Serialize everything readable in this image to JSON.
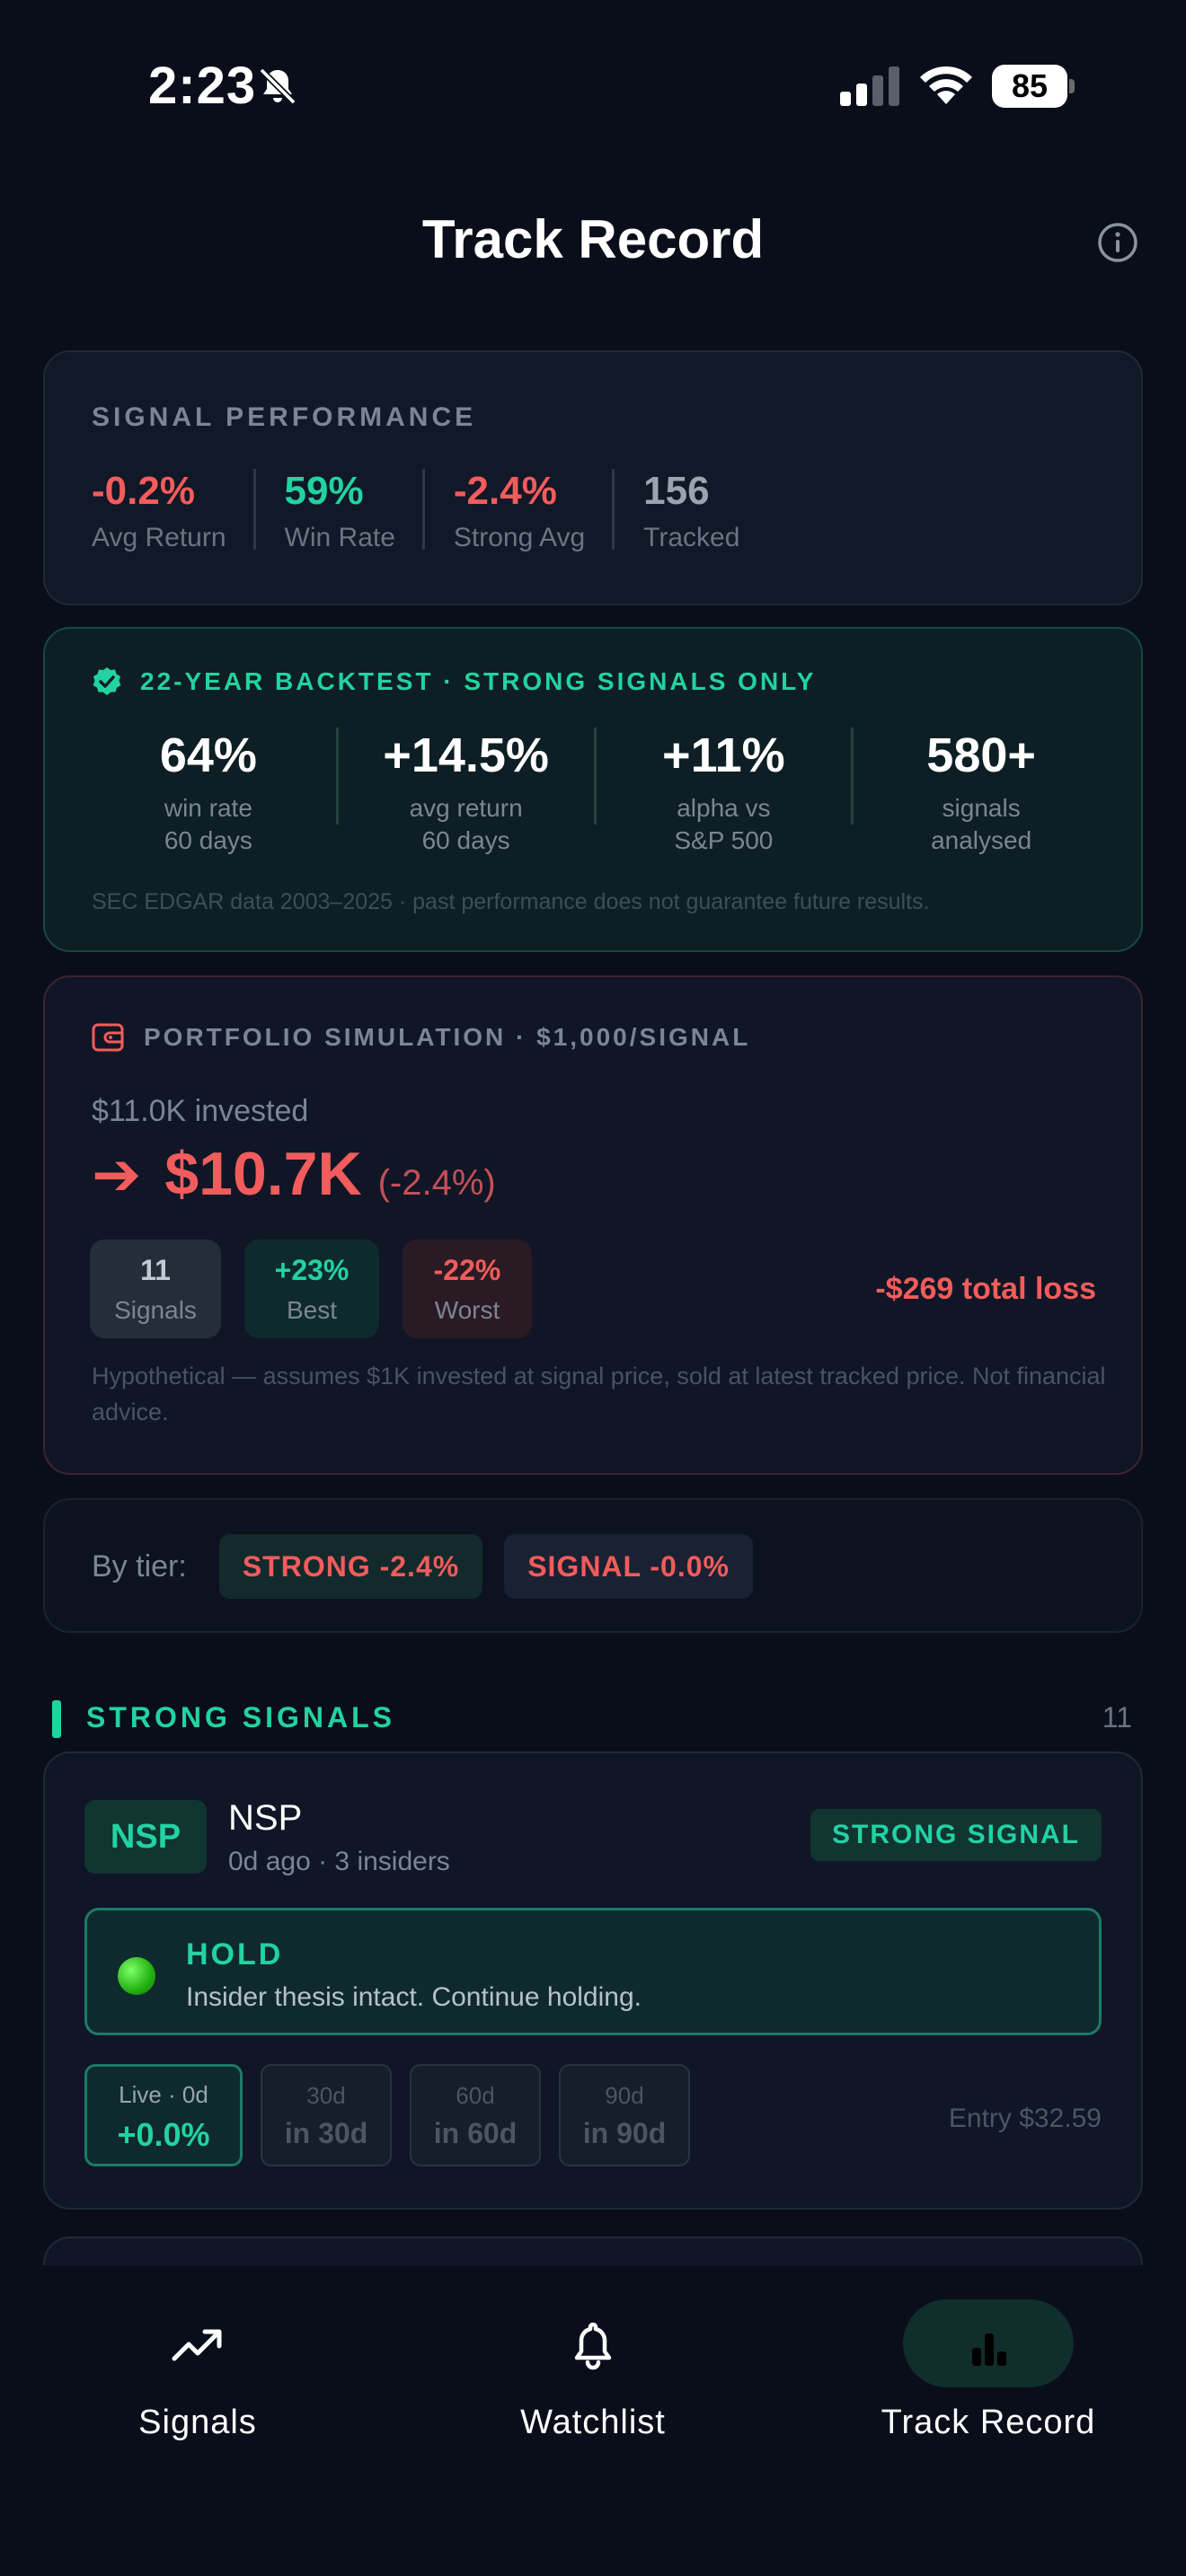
{
  "status_bar": {
    "time": "2:23",
    "battery": "85"
  },
  "header": {
    "title": "Track Record"
  },
  "signal_performance": {
    "label": "SIGNAL PERFORMANCE",
    "stats": [
      {
        "value": "-0.2%",
        "label": "Avg Return",
        "tone": "red"
      },
      {
        "value": "59%",
        "label": "Win Rate",
        "tone": "green"
      },
      {
        "value": "-2.4%",
        "label": "Strong Avg",
        "tone": "red"
      },
      {
        "value": "156",
        "label": "Tracked",
        "tone": "muted"
      }
    ]
  },
  "backtest": {
    "title": "22-YEAR BACKTEST · STRONG SIGNALS ONLY",
    "stats": [
      {
        "value": "64%",
        "label_line1": "win rate",
        "label_line2": "60 days"
      },
      {
        "value": "+14.5%",
        "label_line1": "avg return",
        "label_line2": "60 days"
      },
      {
        "value": "+11%",
        "label_line1": "alpha vs",
        "label_line2": "S&P 500"
      },
      {
        "value": "580+",
        "label_line1": "signals",
        "label_line2": "analysed"
      }
    ],
    "footnote": "SEC EDGAR data 2003–2025 · past performance does not guarantee future results."
  },
  "portfolio": {
    "title": "PORTFOLIO SIMULATION · $1,000/SIGNAL",
    "invested": "$11.0K invested",
    "arrow": "➔",
    "value": "$10.7K",
    "change": "(-2.4%)",
    "chips": [
      {
        "value": "11",
        "label": "Signals"
      },
      {
        "value": "+23%",
        "label": "Best"
      },
      {
        "value": "-22%",
        "label": "Worst"
      }
    ],
    "total": "-$269 total loss",
    "footnote": "Hypothetical — assumes $1K invested at signal price, sold at latest tracked price. Not financial advice."
  },
  "tiers": {
    "label": "By tier:",
    "items": [
      {
        "label": "STRONG -2.4%"
      },
      {
        "label": "SIGNAL -0.0%"
      }
    ]
  },
  "strong_signals": {
    "title": "STRONG SIGNALS",
    "count": "11",
    "cards": [
      {
        "ticker": "NSP",
        "name": "NSP",
        "meta": "0d ago · 3 insiders",
        "badge": "STRONG SIGNAL",
        "status_title": "HOLD",
        "status_desc": "Insider thesis intact. Continue holding.",
        "periods": [
          {
            "top": "Live · 0d",
            "bottom": "+0.0%"
          },
          {
            "top": "30d",
            "bottom": "in 30d"
          },
          {
            "top": "60d",
            "bottom": "in 60d"
          },
          {
            "top": "90d",
            "bottom": "in 90d"
          }
        ],
        "entry": "Entry $32.59"
      }
    ]
  },
  "tab_bar": {
    "tabs": [
      {
        "label": "Signals",
        "icon": "trending-up-icon"
      },
      {
        "label": "Watchlist",
        "icon": "bell-icon"
      },
      {
        "label": "Track Record",
        "icon": "bar-chart-icon"
      }
    ],
    "active": "Track Record"
  },
  "colors": {
    "background": "#0a0e1a",
    "green": "#22d3a0",
    "red": "#f25c5c"
  }
}
